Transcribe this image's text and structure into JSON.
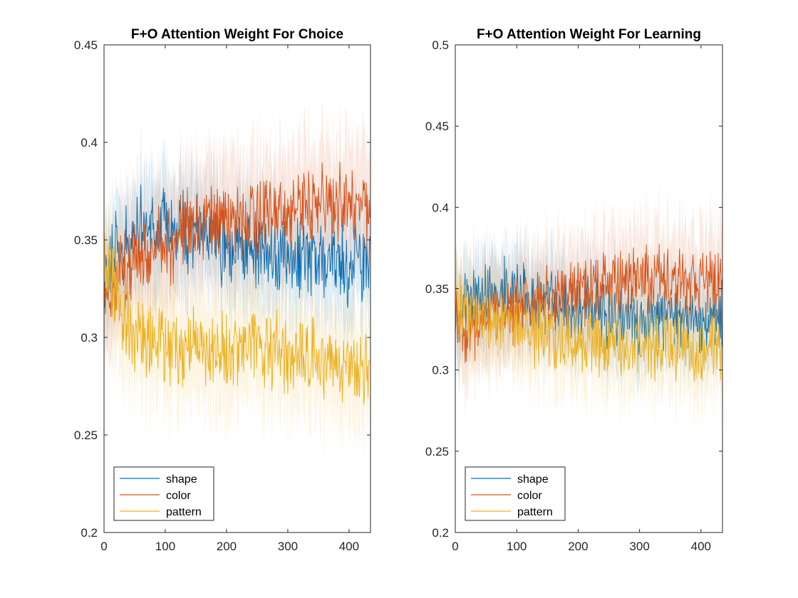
{
  "chart_data": [
    {
      "type": "line",
      "title": "F+O Attention Weight For Choice",
      "xlabel": "",
      "ylabel": "",
      "xlim": [
        0,
        435
      ],
      "ylim": [
        0.2,
        0.45
      ],
      "x_ticks": [
        "0",
        "100",
        "200",
        "300",
        "400"
      ],
      "y_ticks": [
        "0.2",
        "0.25",
        "0.3",
        "0.35",
        "0.4",
        "0.45"
      ],
      "legend": {
        "position": "bottom-left",
        "entries": [
          "shape",
          "color",
          "pattern"
        ]
      },
      "grid": false,
      "shaded_error_band": true,
      "n_points": 435,
      "series": [
        {
          "name": "shape",
          "color": "#0072BD",
          "x": [
            0,
            10,
            20,
            30,
            40,
            50,
            60,
            70,
            80,
            90,
            100,
            110,
            120,
            130,
            140,
            150,
            160,
            170,
            180,
            190,
            200,
            210,
            220,
            230,
            240,
            250,
            260,
            270,
            280,
            290,
            300,
            310,
            320,
            330,
            340,
            350,
            360,
            370,
            380,
            390,
            400,
            410,
            420,
            430
          ],
          "values": [
            0.335,
            0.34,
            0.345,
            0.348,
            0.35,
            0.352,
            0.355,
            0.357,
            0.36,
            0.362,
            0.36,
            0.36,
            0.358,
            0.355,
            0.353,
            0.352,
            0.35,
            0.35,
            0.348,
            0.348,
            0.347,
            0.346,
            0.345,
            0.344,
            0.344,
            0.343,
            0.343,
            0.342,
            0.342,
            0.341,
            0.341,
            0.34,
            0.34,
            0.34,
            0.34,
            0.34,
            0.34,
            0.338,
            0.338,
            0.338,
            0.338,
            0.338,
            0.338,
            0.338
          ],
          "band": 0.025
        },
        {
          "name": "color",
          "color": "#D95319",
          "x": [
            0,
            10,
            20,
            30,
            40,
            50,
            60,
            70,
            80,
            90,
            100,
            110,
            120,
            130,
            140,
            150,
            160,
            170,
            180,
            190,
            200,
            210,
            220,
            230,
            240,
            250,
            260,
            270,
            280,
            290,
            300,
            310,
            320,
            330,
            340,
            350,
            360,
            370,
            380,
            390,
            400,
            410,
            420,
            430
          ],
          "values": [
            0.33,
            0.325,
            0.33,
            0.335,
            0.338,
            0.34,
            0.342,
            0.343,
            0.345,
            0.345,
            0.347,
            0.348,
            0.35,
            0.352,
            0.355,
            0.357,
            0.358,
            0.36,
            0.36,
            0.36,
            0.362,
            0.362,
            0.362,
            0.363,
            0.363,
            0.364,
            0.364,
            0.364,
            0.364,
            0.365,
            0.365,
            0.365,
            0.365,
            0.366,
            0.366,
            0.367,
            0.368,
            0.368,
            0.369,
            0.369,
            0.37,
            0.37,
            0.368,
            0.365
          ],
          "band": 0.028
        },
        {
          "name": "pattern",
          "color": "#EDB120",
          "x": [
            0,
            10,
            20,
            30,
            40,
            50,
            60,
            70,
            80,
            90,
            100,
            110,
            120,
            130,
            140,
            150,
            160,
            170,
            180,
            190,
            200,
            210,
            220,
            230,
            240,
            250,
            260,
            270,
            280,
            290,
            300,
            310,
            320,
            330,
            340,
            350,
            360,
            370,
            380,
            390,
            400,
            410,
            420,
            430
          ],
          "values": [
            0.34,
            0.335,
            0.32,
            0.31,
            0.305,
            0.3,
            0.298,
            0.296,
            0.295,
            0.295,
            0.295,
            0.294,
            0.294,
            0.293,
            0.293,
            0.293,
            0.292,
            0.292,
            0.292,
            0.292,
            0.292,
            0.292,
            0.292,
            0.292,
            0.292,
            0.292,
            0.292,
            0.292,
            0.292,
            0.291,
            0.291,
            0.29,
            0.29,
            0.29,
            0.289,
            0.288,
            0.287,
            0.286,
            0.285,
            0.284,
            0.283,
            0.283,
            0.284,
            0.285
          ],
          "band": 0.025
        }
      ]
    },
    {
      "type": "line",
      "title": "F+O Attention Weight For Learning",
      "xlabel": "",
      "ylabel": "",
      "xlim": [
        0,
        435
      ],
      "ylim": [
        0.2,
        0.5
      ],
      "x_ticks": [
        "0",
        "100",
        "200",
        "300",
        "400"
      ],
      "y_ticks": [
        "0.2",
        "0.25",
        "0.3",
        "0.35",
        "0.4",
        "0.45",
        "0.5"
      ],
      "legend": {
        "position": "bottom-left",
        "entries": [
          "shape",
          "color",
          "pattern"
        ]
      },
      "grid": false,
      "shaded_error_band": true,
      "n_points": 435,
      "series": [
        {
          "name": "shape",
          "color": "#0072BD",
          "x": [
            0,
            10,
            20,
            30,
            40,
            50,
            60,
            70,
            80,
            90,
            100,
            110,
            120,
            130,
            140,
            150,
            160,
            170,
            180,
            190,
            200,
            210,
            220,
            230,
            240,
            250,
            260,
            270,
            280,
            290,
            300,
            310,
            320,
            330,
            340,
            350,
            360,
            370,
            380,
            390,
            400,
            410,
            420,
            430
          ],
          "values": [
            0.335,
            0.338,
            0.34,
            0.342,
            0.343,
            0.344,
            0.345,
            0.346,
            0.347,
            0.347,
            0.346,
            0.345,
            0.344,
            0.343,
            0.342,
            0.341,
            0.34,
            0.339,
            0.338,
            0.337,
            0.337,
            0.336,
            0.336,
            0.335,
            0.335,
            0.334,
            0.334,
            0.333,
            0.333,
            0.333,
            0.332,
            0.332,
            0.331,
            0.331,
            0.33,
            0.33,
            0.33,
            0.33,
            0.33,
            0.33,
            0.33,
            0.33,
            0.33,
            0.33
          ],
          "band": 0.025
        },
        {
          "name": "color",
          "color": "#D95319",
          "x": [
            0,
            10,
            20,
            30,
            40,
            50,
            60,
            70,
            80,
            90,
            100,
            110,
            120,
            130,
            140,
            150,
            160,
            170,
            180,
            190,
            200,
            210,
            220,
            230,
            240,
            250,
            260,
            270,
            280,
            290,
            300,
            310,
            320,
            330,
            340,
            350,
            360,
            370,
            380,
            390,
            400,
            410,
            420,
            430
          ],
          "values": [
            0.33,
            0.325,
            0.325,
            0.327,
            0.33,
            0.332,
            0.334,
            0.335,
            0.336,
            0.337,
            0.338,
            0.339,
            0.34,
            0.341,
            0.342,
            0.343,
            0.344,
            0.345,
            0.346,
            0.347,
            0.348,
            0.349,
            0.35,
            0.351,
            0.352,
            0.353,
            0.354,
            0.355,
            0.356,
            0.356,
            0.357,
            0.357,
            0.357,
            0.357,
            0.357,
            0.357,
            0.357,
            0.356,
            0.356,
            0.355,
            0.355,
            0.354,
            0.352,
            0.35
          ],
          "band": 0.028
        },
        {
          "name": "pattern",
          "color": "#EDB120",
          "x": [
            0,
            10,
            20,
            30,
            40,
            50,
            60,
            70,
            80,
            90,
            100,
            110,
            120,
            130,
            140,
            150,
            160,
            170,
            180,
            190,
            200,
            210,
            220,
            230,
            240,
            250,
            260,
            270,
            280,
            290,
            300,
            310,
            320,
            330,
            340,
            350,
            360,
            370,
            380,
            390,
            400,
            410,
            420,
            430
          ],
          "values": [
            0.34,
            0.338,
            0.335,
            0.333,
            0.332,
            0.331,
            0.33,
            0.329,
            0.328,
            0.327,
            0.326,
            0.325,
            0.324,
            0.323,
            0.322,
            0.322,
            0.321,
            0.32,
            0.32,
            0.319,
            0.318,
            0.318,
            0.317,
            0.316,
            0.316,
            0.315,
            0.315,
            0.314,
            0.314,
            0.314,
            0.314,
            0.313,
            0.313,
            0.313,
            0.313,
            0.313,
            0.313,
            0.313,
            0.313,
            0.313,
            0.312,
            0.312,
            0.312,
            0.312
          ],
          "band": 0.025
        }
      ]
    }
  ]
}
